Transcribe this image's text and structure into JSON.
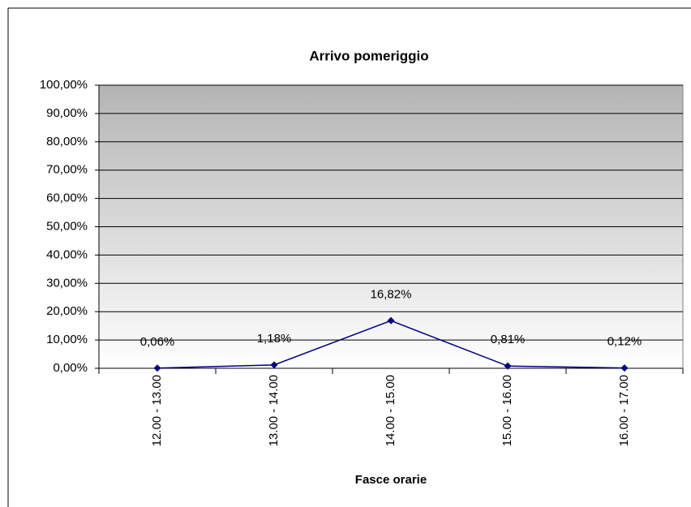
{
  "chart_data": {
    "type": "line",
    "title": "Arrivo pomeriggio",
    "x_label": "Fasce orarie",
    "categories": [
      "12.00 - 13.00",
      "13.00 - 14.00",
      "14.00 - 15.00",
      "15.00 - 16.00",
      "16.00 - 17.00"
    ],
    "series": [
      {
        "color": "#000080",
        "values": [
          0.06,
          1.18,
          16.82,
          0.81,
          0.12
        ],
        "value_labels": [
          "0,06%",
          "1,18%",
          "16,82%",
          "0,81%",
          "0,12%"
        ]
      }
    ],
    "ylim": [
      0,
      100
    ],
    "yticks": [
      {
        "value": 0,
        "label": "0,00%"
      },
      {
        "value": 10,
        "label": "10,00%"
      },
      {
        "value": 20,
        "label": "20,00%"
      },
      {
        "value": 30,
        "label": "30,00%"
      },
      {
        "value": 40,
        "label": "40,00%"
      },
      {
        "value": 50,
        "label": "50,00%"
      },
      {
        "value": 60,
        "label": "60,00%"
      },
      {
        "value": 70,
        "label": "70,00%"
      },
      {
        "value": 80,
        "label": "80,00%"
      },
      {
        "value": 90,
        "label": "90,00%"
      },
      {
        "value": 100,
        "label": "100,00%"
      }
    ],
    "grid": true
  }
}
